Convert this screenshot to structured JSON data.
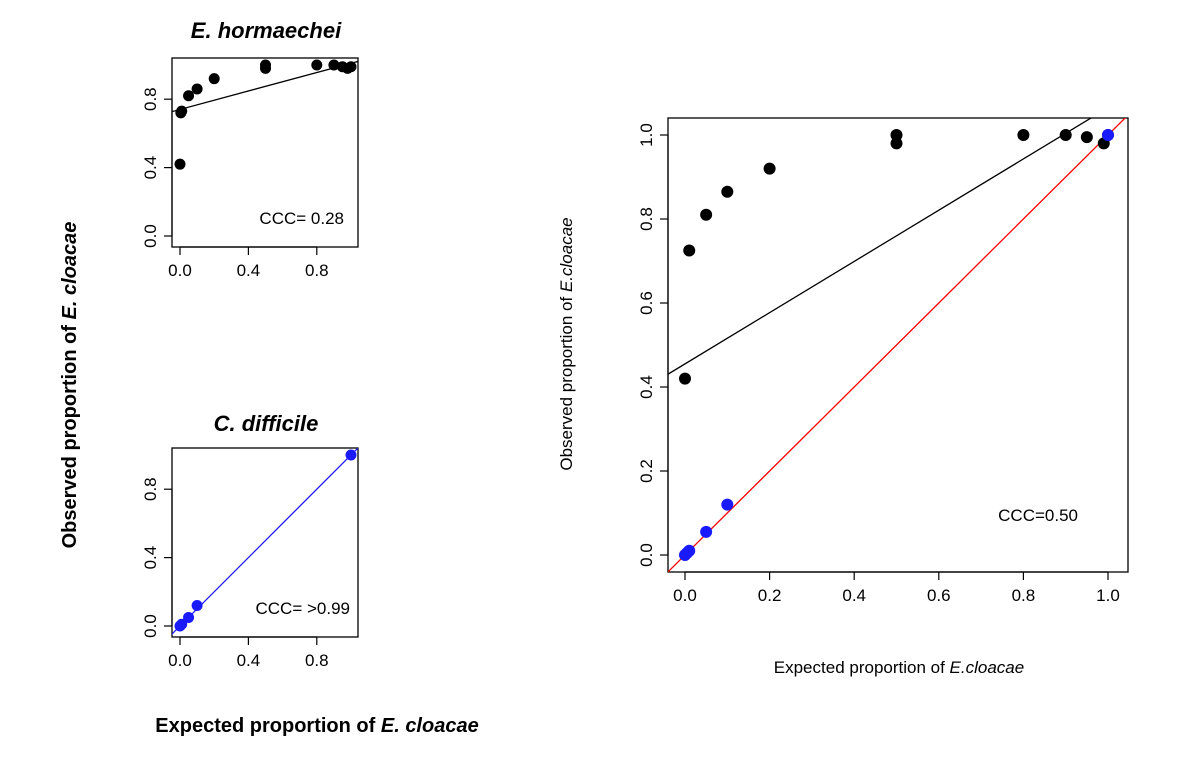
{
  "figure": {
    "shared_ylabel": {
      "text": "Observed proportion of ",
      "italic": "E. cloacae"
    },
    "shared_xlabel": {
      "text": "Expected proportion of ",
      "italic": "E. cloacae"
    }
  },
  "chart_data": [
    {
      "type": "scatter",
      "id": "hormaechei",
      "title": "E. hormaechei",
      "xlim": [
        0,
        1
      ],
      "ylim": [
        0,
        1
      ],
      "xticks": [
        0.0,
        0.4,
        0.8
      ],
      "xtick_labels": [
        "0.0",
        "0.4",
        "0.8"
      ],
      "yticks": [
        0.0,
        0.4,
        0.8
      ],
      "ytick_labels": [
        "0.0",
        "0.4",
        "0.8"
      ],
      "annotation": "CCC= 0.28",
      "point_color": "#000000",
      "fit_line": {
        "color": "#000000",
        "intercept": 0.74,
        "slope": 0.27
      },
      "x": [
        0.0,
        0.005,
        0.01,
        0.05,
        0.1,
        0.2,
        0.5,
        0.5,
        0.8,
        0.9,
        0.95,
        0.98,
        1.0
      ],
      "y": [
        0.42,
        0.72,
        0.73,
        0.82,
        0.86,
        0.92,
        0.98,
        1.0,
        1.0,
        1.0,
        0.99,
        0.98,
        0.99
      ]
    },
    {
      "type": "scatter",
      "id": "difficile",
      "title": "C. difficile",
      "xlim": [
        0,
        1
      ],
      "ylim": [
        0,
        1
      ],
      "xticks": [
        0.0,
        0.4,
        0.8
      ],
      "xtick_labels": [
        "0.0",
        "0.4",
        "0.8"
      ],
      "yticks": [
        0.0,
        0.4,
        0.8
      ],
      "ytick_labels": [
        "0.0",
        "0.4",
        "0.8"
      ],
      "annotation": "CCC= >0.99",
      "point_color": "#1a1aff",
      "fit_line": {
        "color": "#1a1aff",
        "intercept": 0.0,
        "slope": 1.0
      },
      "x": [
        0.0,
        0.01,
        0.05,
        0.1,
        1.0
      ],
      "y": [
        0.0,
        0.01,
        0.05,
        0.12,
        1.0
      ]
    },
    {
      "type": "scatter",
      "id": "combined",
      "title": "",
      "xlabel": {
        "text": "Expected proportion of ",
        "italic": "E.cloacae"
      },
      "ylabel": {
        "text": "Observed proportion of ",
        "italic": "E.cloacae"
      },
      "xlim": [
        0,
        1
      ],
      "ylim": [
        0,
        1
      ],
      "xticks": [
        0.0,
        0.2,
        0.4,
        0.6,
        0.8,
        1.0
      ],
      "xtick_labels": [
        "0.0",
        "0.2",
        "0.4",
        "0.6",
        "0.8",
        "1.0"
      ],
      "yticks": [
        0.0,
        0.2,
        0.4,
        0.6,
        0.8,
        1.0
      ],
      "ytick_labels": [
        "0.0",
        "0.2",
        "0.4",
        "0.6",
        "0.8",
        "1.0"
      ],
      "annotation": "CCC=0.50",
      "fit_line": {
        "color": "#000000",
        "intercept": 0.455,
        "slope": 0.61
      },
      "identity_line": {
        "color": "#ff0000"
      },
      "series": [
        {
          "color": "#000000",
          "x": [
            0.0,
            0.01,
            0.05,
            0.1,
            0.2,
            0.5,
            0.5,
            0.8,
            0.9,
            0.95,
            0.99,
            1.0
          ],
          "y": [
            0.42,
            0.725,
            0.81,
            0.865,
            0.92,
            0.98,
            1.0,
            1.0,
            1.0,
            0.995,
            0.98,
            1.0
          ]
        },
        {
          "color": "#1a1aff",
          "x": [
            0.0,
            0.005,
            0.01,
            0.05,
            0.1,
            1.0
          ],
          "y": [
            0.0,
            0.005,
            0.01,
            0.055,
            0.12,
            1.0
          ]
        }
      ]
    }
  ]
}
